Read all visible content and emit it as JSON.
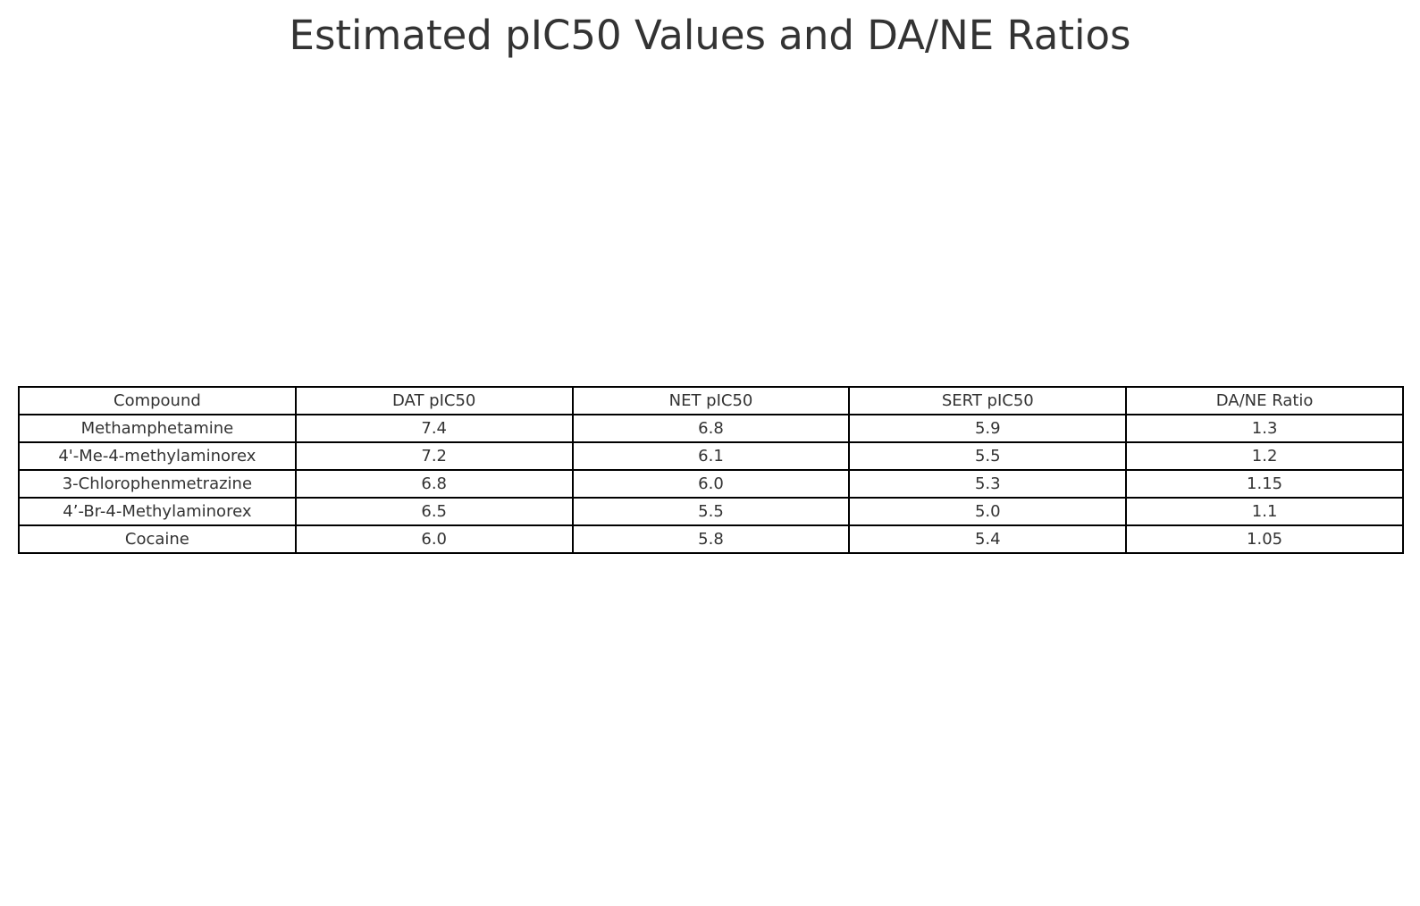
{
  "chart_data": {
    "type": "table",
    "title": "Estimated pIC50 Values and DA/NE Ratios",
    "columns": [
      "Compound",
      "DAT pIC50",
      "NET pIC50",
      "SERT pIC50",
      "DA/NE Ratio"
    ],
    "rows": [
      [
        "Methamphetamine",
        "7.4",
        "6.8",
        "5.9",
        "1.3"
      ],
      [
        "4'-Me-4-methylaminorex",
        "7.2",
        "6.1",
        "5.5",
        "1.2"
      ],
      [
        "3-Chlorophenmetrazine",
        "6.8",
        "6.0",
        "5.3",
        "1.15"
      ],
      [
        "4’-Br-4-Methylaminorex",
        "6.5",
        "5.5",
        "5.0",
        "1.1"
      ],
      [
        "Cocaine",
        "6.0",
        "5.8",
        "5.4",
        "1.05"
      ]
    ]
  }
}
